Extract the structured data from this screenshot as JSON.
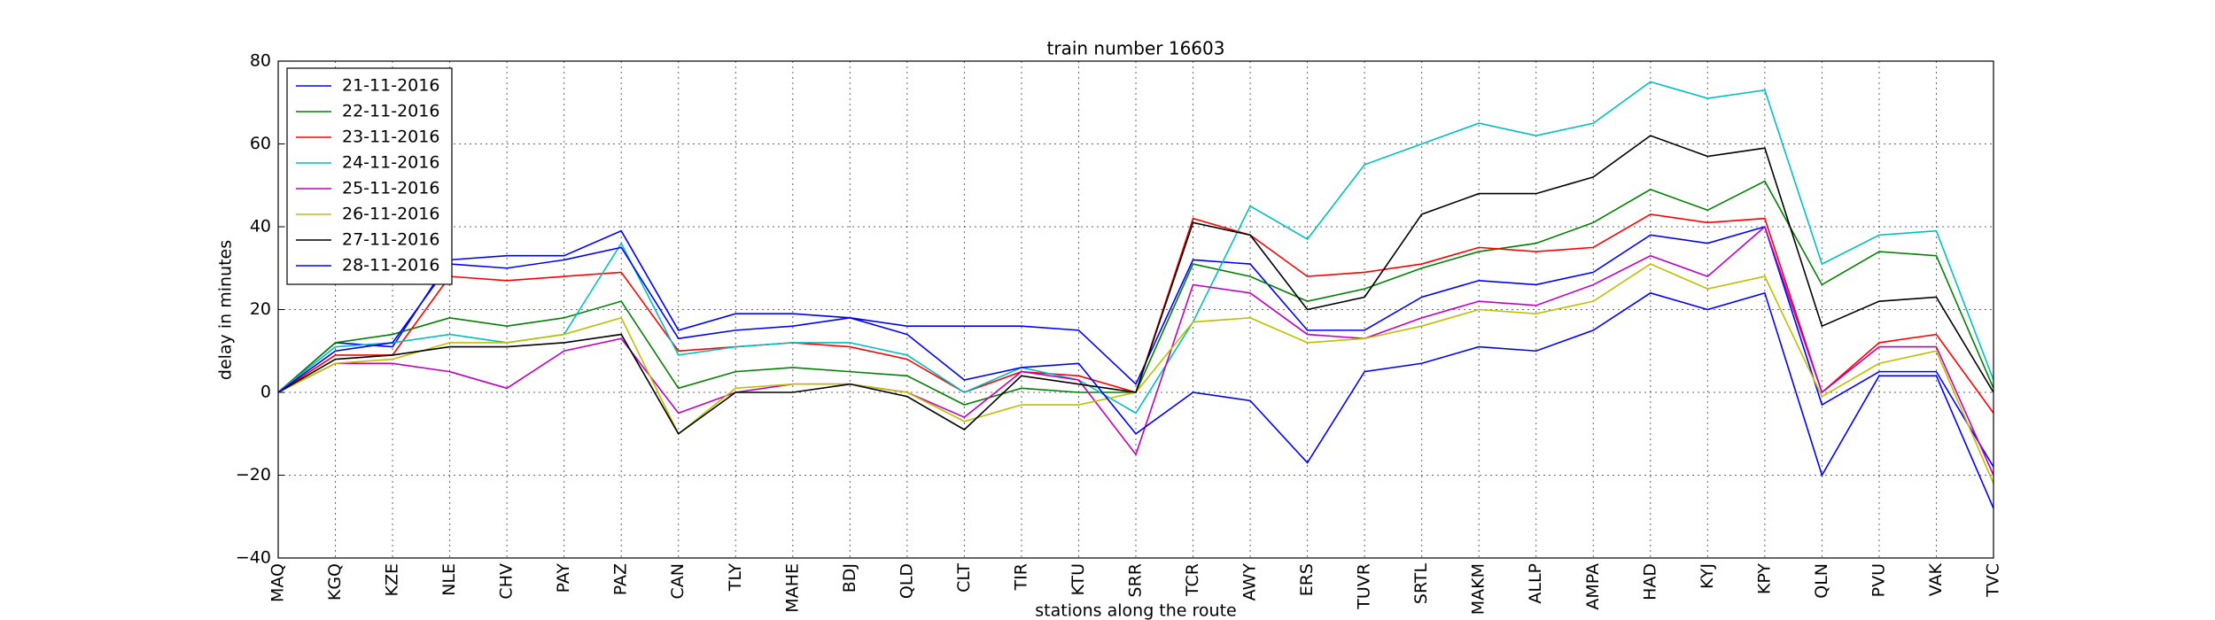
{
  "chart_data": {
    "type": "line",
    "title": "train number 16603",
    "x_label": "stations along the route",
    "y_label": "delay in minutes",
    "categories": [
      "MAQ",
      "KGQ",
      "KZE",
      "NLE",
      "CHV",
      "PAY",
      "PAZ",
      "CAN",
      "TLY",
      "MAHE",
      "BDJ",
      "QLD",
      "CLT",
      "TIR",
      "KTU",
      "SRR",
      "TCR",
      "AWY",
      "ERS",
      "TUVR",
      "SRTL",
      "MAKM",
      "ALLP",
      "AMPA",
      "HAD",
      "KYJ",
      "KPY",
      "QLN",
      "PVU",
      "VAK",
      "TVC"
    ],
    "series": [
      {
        "name": "21-11-2016",
        "color": "#0000ff",
        "values": [
          0,
          12,
          11,
          32,
          33,
          33,
          39,
          15,
          19,
          19,
          18,
          16,
          16,
          16,
          15,
          2,
          32,
          31,
          15,
          15,
          23,
          27,
          26,
          29,
          38,
          36,
          40,
          -3,
          5,
          5,
          -18
        ]
      },
      {
        "name": "22-11-2016",
        "color": "#008000",
        "values": [
          0,
          12,
          14,
          18,
          16,
          18,
          22,
          1,
          5,
          6,
          5,
          4,
          -3,
          1,
          0,
          0,
          31,
          28,
          22,
          25,
          30,
          34,
          36,
          41,
          49,
          44,
          51,
          26,
          34,
          33,
          1
        ]
      },
      {
        "name": "23-11-2016",
        "color": "#ff0000",
        "values": [
          0,
          9,
          9,
          28,
          27,
          28,
          29,
          10,
          11,
          12,
          11,
          8,
          0,
          5,
          4,
          0,
          42,
          38,
          28,
          29,
          31,
          35,
          34,
          35,
          43,
          41,
          42,
          0,
          12,
          14,
          -5
        ]
      },
      {
        "name": "24-11-2016",
        "color": "#00bfbf",
        "values": [
          0,
          11,
          12,
          14,
          12,
          14,
          36,
          9,
          11,
          12,
          12,
          9,
          0,
          6,
          3,
          -5,
          17,
          45,
          37,
          55,
          60,
          65,
          62,
          65,
          75,
          71,
          73,
          31,
          38,
          39,
          3
        ]
      },
      {
        "name": "25-11-2016",
        "color": "#bf00bf",
        "values": [
          0,
          7,
          7,
          5,
          1,
          10,
          13,
          -5,
          0,
          2,
          2,
          0,
          -6,
          5,
          3,
          -15,
          26,
          24,
          14,
          13,
          18,
          22,
          21,
          26,
          33,
          28,
          40,
          0,
          11,
          11,
          -20
        ]
      },
      {
        "name": "26-11-2016",
        "color": "#bfbf00",
        "values": [
          0,
          7,
          8,
          12,
          12,
          14,
          18,
          -10,
          1,
          2,
          2,
          0,
          -7,
          -3,
          -3,
          0,
          17,
          18,
          12,
          13,
          16,
          20,
          19,
          22,
          31,
          25,
          28,
          -1,
          7,
          10,
          -22
        ]
      },
      {
        "name": "27-11-2016",
        "color": "#000000",
        "values": [
          0,
          8,
          9,
          11,
          11,
          12,
          14,
          -10,
          0,
          0,
          2,
          -1,
          -9,
          4,
          2,
          0,
          41,
          38,
          20,
          23,
          43,
          48,
          48,
          52,
          62,
          57,
          59,
          16,
          22,
          23,
          0
        ]
      },
      {
        "name": "28-11-2016",
        "color": "#0000ff",
        "values": [
          0,
          10,
          12,
          31,
          30,
          32,
          35,
          13,
          15,
          16,
          18,
          14,
          3,
          6,
          7,
          -10,
          0,
          -2,
          -17,
          5,
          7,
          11,
          10,
          15,
          24,
          20,
          24,
          -20,
          4,
          4,
          -28
        ]
      }
    ],
    "ylim": [
      -40,
      80
    ],
    "yticks": [
      {
        "value": -40,
        "label": "−40"
      },
      {
        "value": -20,
        "label": "−20"
      },
      0,
      20,
      40,
      60,
      80
    ],
    "grid": true,
    "legend": "upper left"
  }
}
